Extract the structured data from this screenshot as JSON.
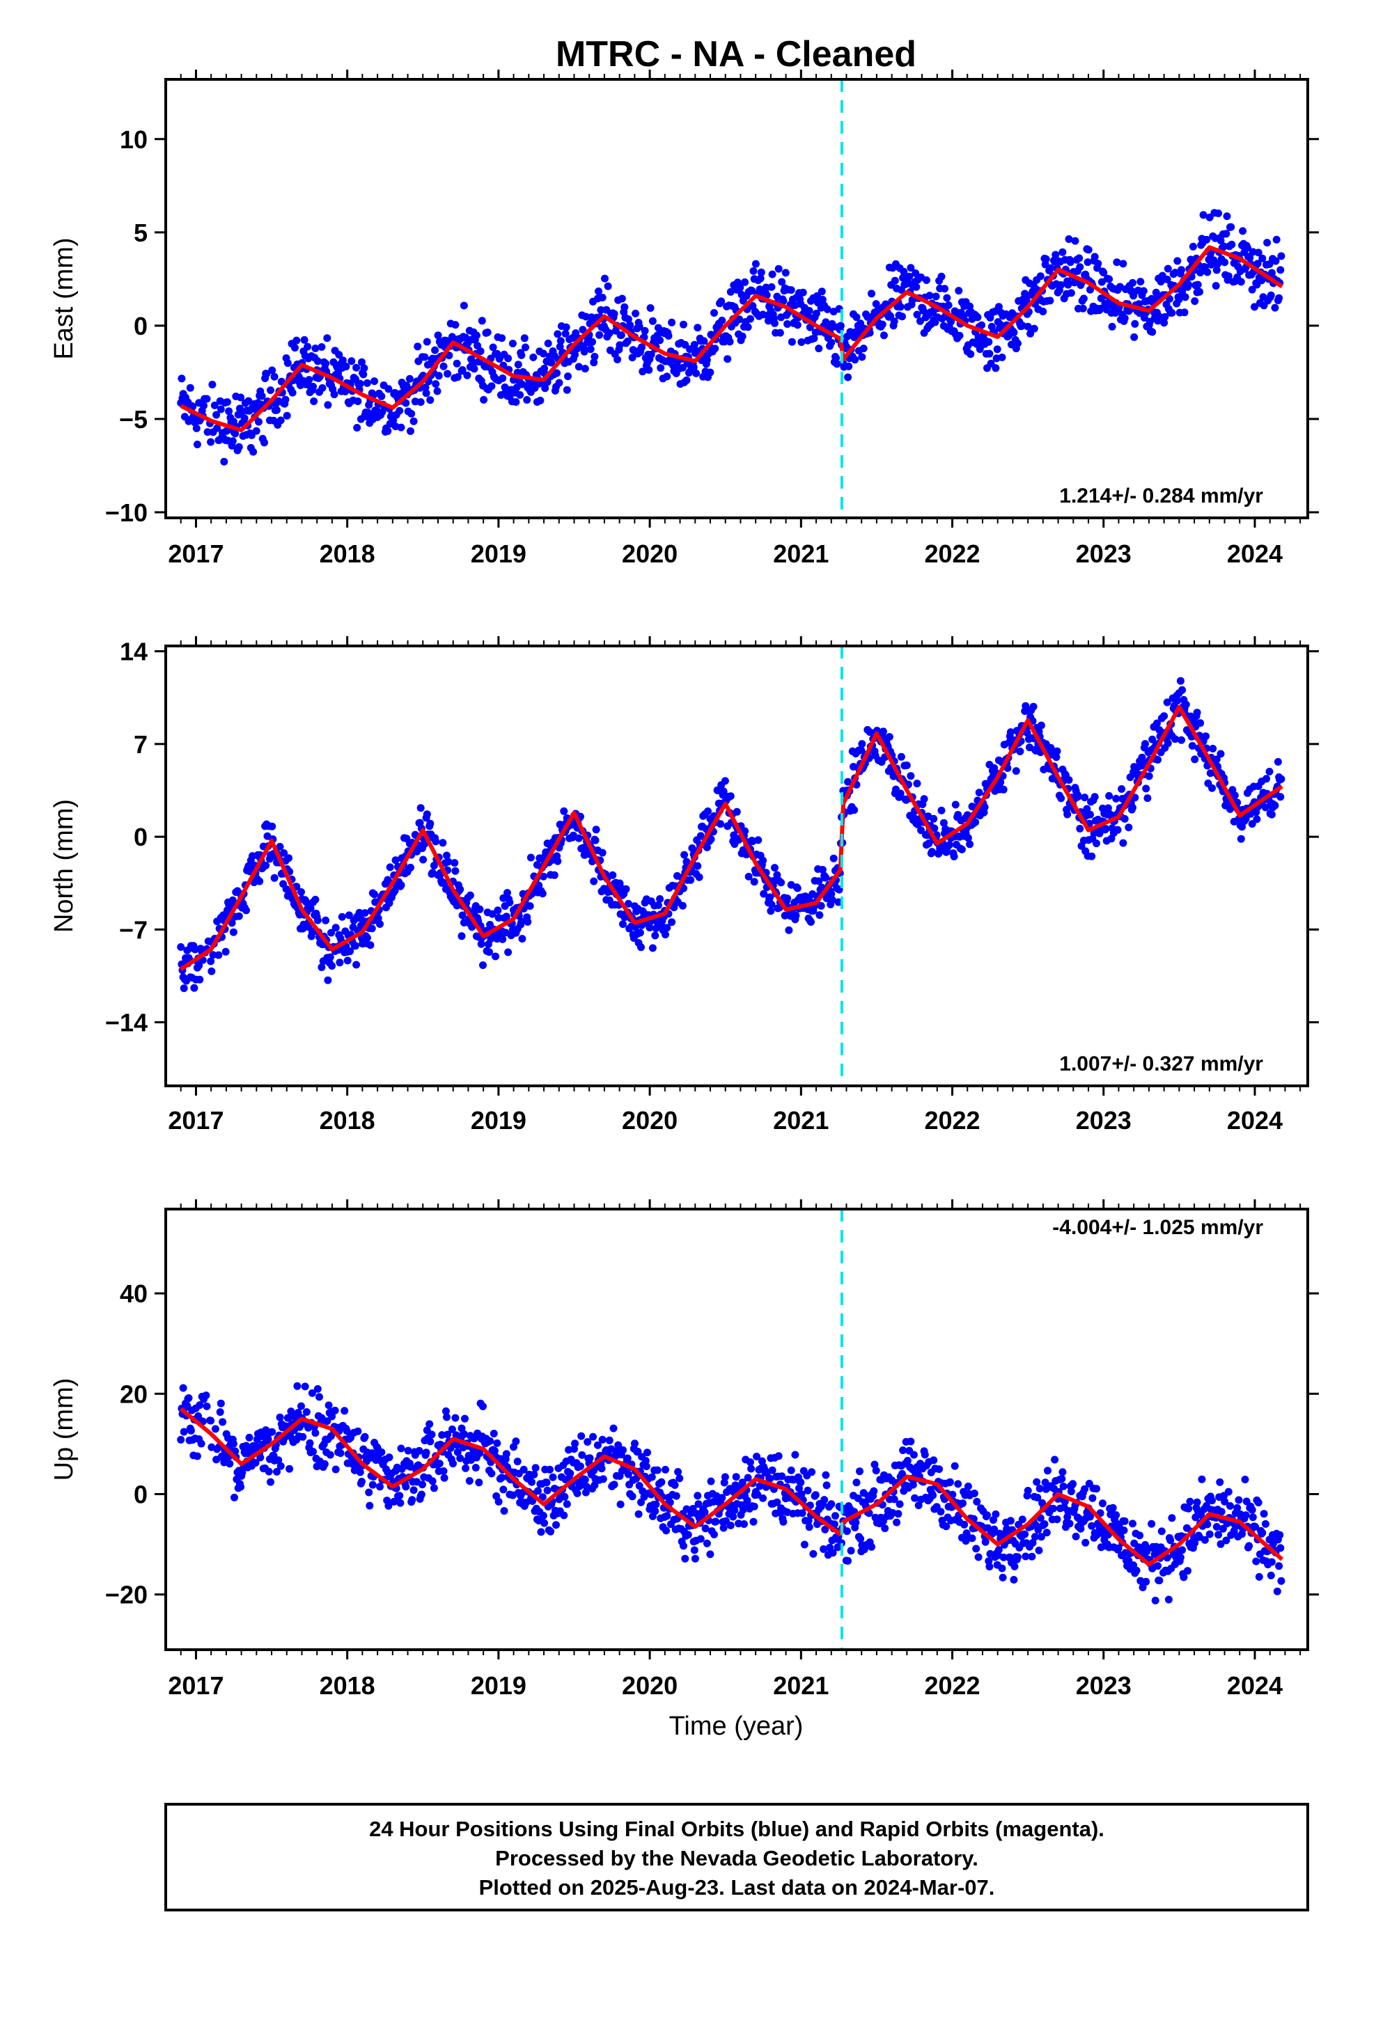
{
  "title": "MTRC  - NA - Cleaned",
  "xlabel": "Time (year)",
  "footer": {
    "line1": "24 Hour Positions Using Final Orbits (blue) and Rapid Orbits (magenta).",
    "line2": "Processed by the Nevada Geodetic Laboratory.",
    "line3": "Plotted on 2025-Aug-23. Last data on 2024-Mar-07."
  },
  "colors": {
    "points": "#0000ff",
    "model": "#ff0000",
    "break": "#00e5ee"
  },
  "chart_data": [
    {
      "type": "scatter",
      "ylabel": "East (mm)",
      "rate_text": "1.214+/- 0.284 mm/yr",
      "xlim": [
        2016.8,
        2024.35
      ],
      "ylim": [
        -10.3,
        13.2
      ],
      "yticks": [
        -10,
        -5,
        0,
        5,
        10
      ],
      "yticklabels": [
        "−10",
        "−5",
        "0",
        "5",
        "10"
      ],
      "xticks": [
        2017,
        2018,
        2019,
        2020,
        2021,
        2022,
        2023,
        2024
      ],
      "xticklabels": [
        "2017",
        "2018",
        "2019",
        "2020",
        "2021",
        "2022",
        "2023",
        "2024"
      ],
      "break_epoch": 2021.27,
      "model_series": {
        "name": "model",
        "x": [
          2016.9,
          2017.1,
          2017.3,
          2017.5,
          2017.7,
          2017.9,
          2018.1,
          2018.3,
          2018.5,
          2018.7,
          2018.9,
          2019.1,
          2019.3,
          2019.5,
          2019.7,
          2019.9,
          2020.1,
          2020.3,
          2020.5,
          2020.7,
          2020.9,
          2021.1,
          2021.26,
          2021.28,
          2021.5,
          2021.7,
          2021.9,
          2022.1,
          2022.3,
          2022.5,
          2022.7,
          2022.9,
          2023.1,
          2023.3,
          2023.5,
          2023.7,
          2023.9,
          2024.18
        ],
        "y": [
          -4.3,
          -5.1,
          -5.6,
          -4.0,
          -2.1,
          -2.8,
          -3.7,
          -4.4,
          -3.0,
          -0.9,
          -1.8,
          -2.7,
          -2.9,
          -1.0,
          0.5,
          -0.6,
          -1.5,
          -1.9,
          0.0,
          1.6,
          1.0,
          0.0,
          -0.7,
          -1.8,
          0.4,
          1.8,
          1.0,
          0.0,
          -0.6,
          1.0,
          3.0,
          2.3,
          1.2,
          0.8,
          2.2,
          4.2,
          3.6,
          2.1
        ]
      }
    },
    {
      "type": "scatter",
      "ylabel": "North (mm)",
      "rate_text": "1.007+/- 0.327 mm/yr",
      "xlim": [
        2016.8,
        2024.35
      ],
      "ylim": [
        -18.8,
        14.4
      ],
      "yticks": [
        -14,
        -7,
        0,
        7,
        14
      ],
      "yticklabels": [
        "−14",
        "−7",
        "0",
        "7",
        "14"
      ],
      "xticks": [
        2017,
        2018,
        2019,
        2020,
        2021,
        2022,
        2023,
        2024
      ],
      "xticklabels": [
        "2017",
        "2018",
        "2019",
        "2020",
        "2021",
        "2022",
        "2023",
        "2024"
      ],
      "break_epoch": 2021.27,
      "model_series": {
        "name": "model",
        "x": [
          2016.9,
          2017.1,
          2017.3,
          2017.5,
          2017.7,
          2017.9,
          2018.1,
          2018.3,
          2018.5,
          2018.7,
          2018.9,
          2019.1,
          2019.3,
          2019.5,
          2019.7,
          2019.9,
          2020.1,
          2020.3,
          2020.5,
          2020.7,
          2020.9,
          2021.1,
          2021.26,
          2021.28,
          2021.5,
          2021.7,
          2021.9,
          2022.1,
          2022.3,
          2022.5,
          2022.7,
          2022.9,
          2023.1,
          2023.3,
          2023.5,
          2023.7,
          2023.9,
          2024.18
        ],
        "y": [
          -10.0,
          -8.5,
          -4.5,
          -0.3,
          -5.5,
          -8.5,
          -7.2,
          -3.5,
          0.5,
          -4.0,
          -7.5,
          -6.2,
          -2.2,
          1.8,
          -3.0,
          -6.5,
          -5.8,
          -1.5,
          2.5,
          -2.0,
          -5.5,
          -5.0,
          -2.5,
          2.5,
          7.8,
          3.5,
          -0.5,
          1.0,
          4.5,
          8.8,
          4.5,
          0.5,
          1.5,
          5.5,
          9.8,
          5.8,
          1.6,
          3.8
        ]
      }
    },
    {
      "type": "scatter",
      "ylabel": "Up (mm)",
      "rate_text": "-4.004+/- 1.025 mm/yr",
      "xlim": [
        2016.8,
        2024.35
      ],
      "ylim": [
        -31,
        56.8
      ],
      "yticks": [
        -20,
        0,
        20,
        40
      ],
      "yticklabels": [
        "−20",
        "0",
        "20",
        "40"
      ],
      "xticks": [
        2017,
        2018,
        2019,
        2020,
        2021,
        2022,
        2023,
        2024
      ],
      "xticklabels": [
        "2017",
        "2018",
        "2019",
        "2020",
        "2021",
        "2022",
        "2023",
        "2024"
      ],
      "break_epoch": 2021.27,
      "model_series": {
        "name": "model",
        "x": [
          2016.9,
          2017.1,
          2017.3,
          2017.5,
          2017.7,
          2017.9,
          2018.1,
          2018.3,
          2018.5,
          2018.7,
          2018.9,
          2019.1,
          2019.3,
          2019.5,
          2019.7,
          2019.9,
          2020.1,
          2020.3,
          2020.5,
          2020.7,
          2020.9,
          2021.1,
          2021.26,
          2021.28,
          2021.5,
          2021.7,
          2021.9,
          2022.1,
          2022.3,
          2022.5,
          2022.7,
          2022.9,
          2023.1,
          2023.3,
          2023.5,
          2023.7,
          2023.9,
          2024.18
        ],
        "y": [
          17.0,
          12.0,
          6.0,
          10.0,
          15.0,
          13.0,
          6.0,
          1.5,
          5.0,
          11.0,
          9.0,
          3.0,
          -2.0,
          3.0,
          7.5,
          5.0,
          -2.0,
          -6.5,
          -2.0,
          3.0,
          1.0,
          -4.5,
          -8.0,
          -5.5,
          -2.0,
          3.5,
          2.0,
          -5.0,
          -10.0,
          -6.0,
          0.0,
          -2.5,
          -9.0,
          -14.0,
          -10.0,
          -4.0,
          -5.5,
          -13.0
        ]
      }
    }
  ]
}
